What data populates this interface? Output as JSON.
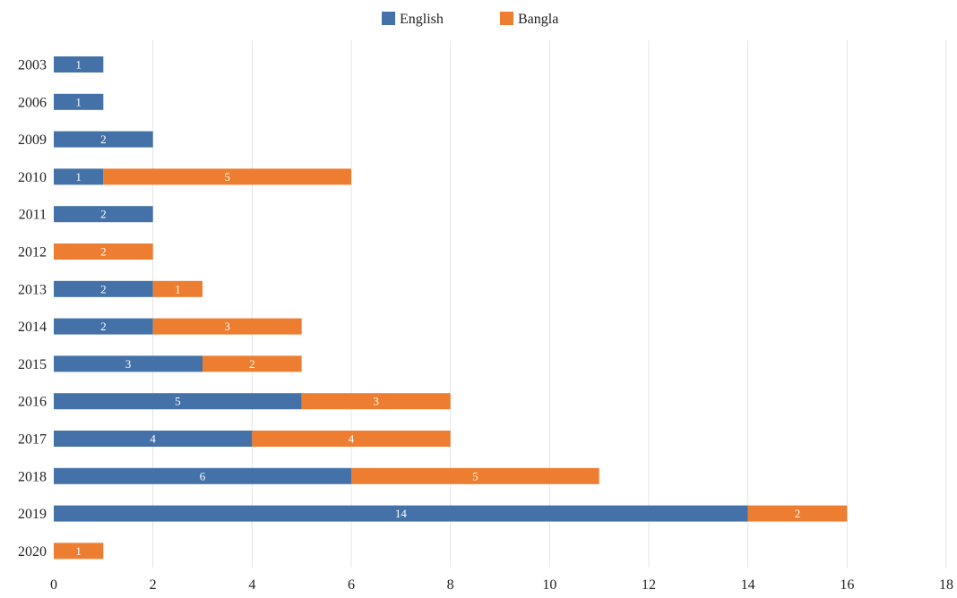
{
  "chart_data": {
    "type": "bar",
    "orientation": "horizontal",
    "stacked": true,
    "categories": [
      "2003",
      "2006",
      "2009",
      "2010",
      "2011",
      "2012",
      "2013",
      "2014",
      "2015",
      "2016",
      "2017",
      "2018",
      "2019",
      "2020"
    ],
    "series": [
      {
        "name": "English",
        "color": "#4472a8",
        "values": [
          1,
          1,
          2,
          1,
          2,
          0,
          2,
          2,
          3,
          5,
          4,
          6,
          14,
          0
        ]
      },
      {
        "name": "Bangla",
        "color": "#ed7d31",
        "values": [
          0,
          0,
          0,
          5,
          0,
          2,
          1,
          3,
          2,
          3,
          4,
          5,
          2,
          1
        ]
      }
    ],
    "xlim": [
      0,
      18
    ],
    "xticks": [
      "0",
      "2",
      "4",
      "6",
      "8",
      "10",
      "12",
      "14",
      "16",
      "18"
    ],
    "grid": true,
    "legend_position": "top-center",
    "title": "",
    "xlabel": "",
    "ylabel": ""
  }
}
